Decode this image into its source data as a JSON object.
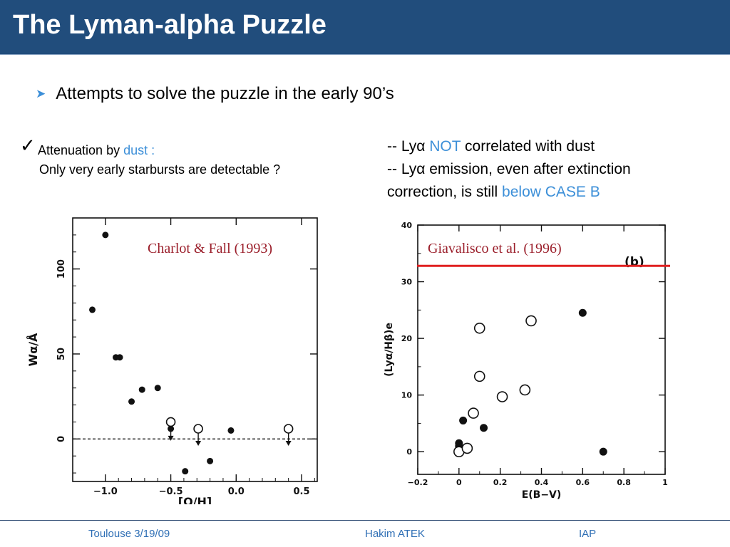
{
  "slide": {
    "title": "The Lyman-alpha Puzzle",
    "bullet": "Attempts to solve the puzzle in the early 90’s",
    "check_mark": "✓",
    "left": {
      "line1_prefix": "Attenuation by ",
      "line1_highlight": "dust :",
      "line2": "Only very early starbursts are detectable ?"
    },
    "right": {
      "line1_prefix": "-- Ly",
      "alpha": "α",
      "line1_highlight": "NOT",
      "line1_suffix": "correlated with dust",
      "line2_prefix": "-- Ly",
      "line2_suffix": "emission, even after extinction",
      "line3_prefix": "correction, is still",
      "line3_highlight": "below CASE B"
    },
    "colors": {
      "title_bar": "#214d7c",
      "accent_blue": "#3c8fd8",
      "citation": "#9b1f2b",
      "case_b_line": "#e02020"
    }
  },
  "footer": {
    "left": "Toulouse 3/19/09",
    "center": "Hakim ATEK",
    "right": "IAP"
  },
  "chart_data": [
    {
      "type": "scatter",
      "annotation": "Charlot & Fall (1993)",
      "xlabel": "[O/H]",
      "ylabel": "Wα/Å",
      "xlim": [
        -1.25,
        0.62
      ],
      "ylim": [
        -25,
        130
      ],
      "x_ticks": [
        "−1.0",
        "−0.5",
        "0.0",
        "0.5"
      ],
      "x_tick_values": [
        -1.0,
        -0.5,
        0.0,
        0.5
      ],
      "y_ticks": [
        "0",
        "50",
        "100"
      ],
      "y_tick_values": [
        0,
        50,
        100
      ],
      "reference_line": {
        "y": 0,
        "style": "dashed"
      },
      "series": [
        {
          "marker": "filled",
          "points": [
            [
              -1.0,
              120
            ],
            [
              -1.1,
              76
            ],
            [
              -0.92,
              48
            ],
            [
              -0.89,
              48
            ],
            [
              -0.8,
              22
            ],
            [
              -0.72,
              29
            ],
            [
              -0.6,
              30
            ],
            [
              -0.5,
              9
            ],
            [
              -0.5,
              6
            ],
            [
              -0.04,
              5
            ],
            [
              -0.2,
              -13
            ],
            [
              -0.39,
              -19
            ]
          ]
        },
        {
          "marker": "open",
          "points": [
            [
              -0.5,
              10
            ],
            [
              -0.29,
              6
            ],
            [
              0.4,
              6
            ]
          ]
        },
        {
          "marker": "upper-limit-arrow",
          "points": [
            [
              -0.5,
              9
            ],
            [
              -0.29,
              6
            ],
            [
              0.4,
              6
            ]
          ]
        }
      ]
    },
    {
      "type": "scatter",
      "annotation": "Giavalisco et al. (1996)",
      "panel_label": "(b)",
      "xlabel": "E(B−V)",
      "ylabel": "(Lyα/Hβ)e",
      "xlim": [
        -0.2,
        1.0
      ],
      "ylim": [
        -4,
        40
      ],
      "x_ticks": [
        "−0.2",
        "0",
        "0.2",
        "0.4",
        "0.6",
        "0.8",
        "1"
      ],
      "x_tick_values": [
        -0.2,
        0,
        0.2,
        0.4,
        0.6,
        0.8,
        1.0
      ],
      "y_ticks": [
        "0",
        "10",
        "20",
        "30",
        "40"
      ],
      "y_tick_values": [
        0,
        10,
        20,
        30,
        40
      ],
      "reference_line": {
        "y": 32.8,
        "label": "CASE B",
        "color": "#e02020"
      },
      "series": [
        {
          "marker": "filled",
          "points": [
            [
              0.0,
              1.5
            ],
            [
              0.0,
              1.0
            ],
            [
              0.02,
              5.5
            ],
            [
              0.12,
              4.2
            ],
            [
              0.6,
              24.5
            ],
            [
              0.7,
              0.0
            ]
          ]
        },
        {
          "marker": "open",
          "points": [
            [
              0.0,
              0.0
            ],
            [
              0.04,
              0.6
            ],
            [
              0.07,
              6.8
            ],
            [
              0.1,
              21.8
            ],
            [
              0.1,
              13.3
            ],
            [
              0.21,
              9.7
            ],
            [
              0.32,
              10.9
            ],
            [
              0.35,
              23.1
            ]
          ]
        }
      ]
    }
  ]
}
